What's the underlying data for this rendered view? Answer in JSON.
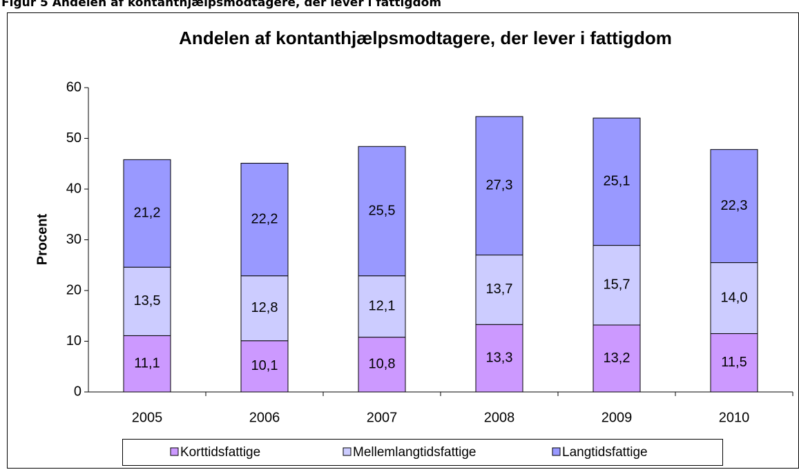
{
  "header": "Figur 5 Andelen af kontanthjælpsmodtagere, der lever i fattigdom",
  "chart_data": {
    "type": "stacked-bar",
    "title": "Andelen af kontanthjælpsmodtagere, der lever i fattigdom",
    "y_label": "Procent",
    "categories": [
      "2005",
      "2006",
      "2007",
      "2008",
      "2009",
      "2010"
    ],
    "series": [
      {
        "name": "Korttidsfattige",
        "color": "#cc99ff",
        "values": [
          11.1,
          10.1,
          10.8,
          13.3,
          13.2,
          11.5
        ],
        "value_labels": [
          "11,1",
          "10,1",
          "10,8",
          "13,3",
          "13,2",
          "11,5"
        ]
      },
      {
        "name": "Mellemlangtidsfattige",
        "color": "#ccccff",
        "values": [
          13.5,
          12.8,
          12.1,
          13.7,
          15.7,
          14.0
        ],
        "value_labels": [
          "13,5",
          "12,8",
          "12,1",
          "13,7",
          "15,7",
          "14,0"
        ]
      },
      {
        "name": "Langtidsfattige",
        "color": "#9999ff",
        "values": [
          21.2,
          22.2,
          25.5,
          27.3,
          25.1,
          22.3
        ],
        "value_labels": [
          "21,2",
          "22,2",
          "25,5",
          "27,3",
          "25,1",
          "22,3"
        ]
      }
    ],
    "ylim": [
      0,
      60
    ],
    "yticks": [
      0,
      10,
      20,
      30,
      40,
      50,
      60
    ],
    "legend": "bottom"
  }
}
